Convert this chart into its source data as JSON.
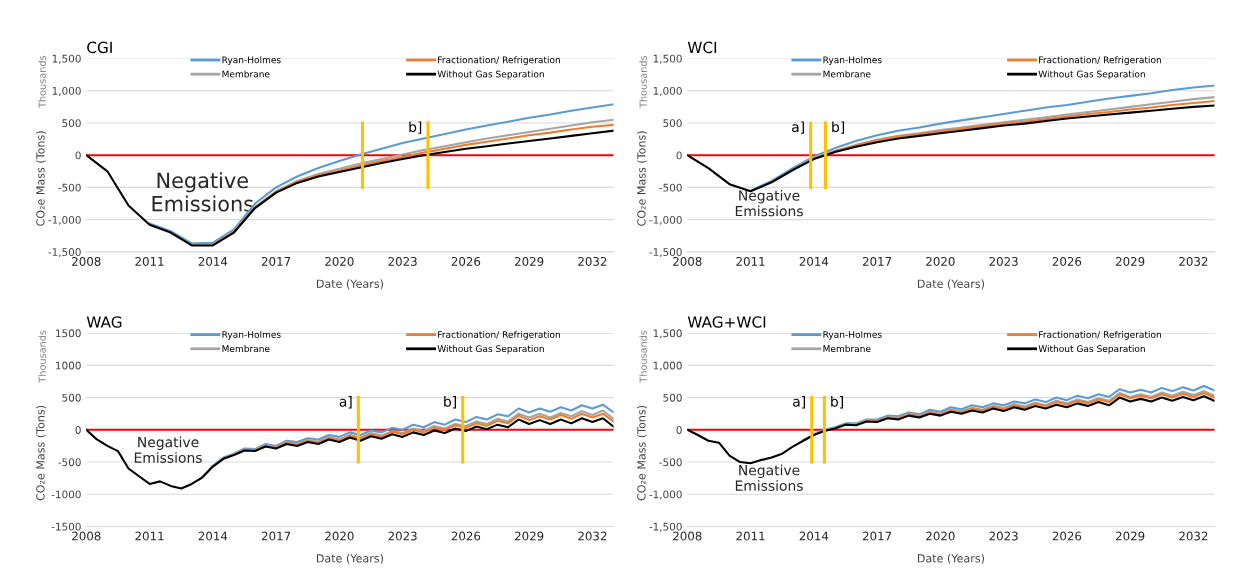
{
  "chart_data": [
    {
      "type": "line",
      "title": "CGI",
      "xlabel": "Date (Years)",
      "ylabel": "CO₂e Mass (Tons)",
      "annotations": [
        "Thousands",
        "Negative\nEmissions"
      ],
      "grid": "y",
      "legend": "top",
      "xlim": [
        2008,
        2033
      ],
      "xticks": [
        2008,
        2011,
        2014,
        2017,
        2020,
        2023,
        2026,
        2029,
        2032
      ],
      "ylim": [
        -1500,
        1500
      ],
      "yticks": [
        {
          "value": -1500,
          "label": "-1,500"
        },
        {
          "value": -1000,
          "label": "-1,000"
        },
        -500,
        0,
        500,
        {
          "value": 1000,
          "label": "1,000"
        },
        {
          "value": 1500,
          "label": "1,500"
        }
      ],
      "ref_lines": [
        {
          "axis": "y",
          "value": 0,
          "label": null,
          "color": "#ff0000"
        },
        {
          "axis": "x",
          "value": 2021.1,
          "label": null,
          "color": "#ffc000"
        },
        {
          "axis": "x",
          "value": 2024.2,
          "label": "b]",
          "color": "#ffc000"
        }
      ],
      "x": [
        2008,
        2009,
        2010,
        2011,
        2012,
        2013,
        2014,
        2015,
        2016,
        2017,
        2018,
        2019,
        2020,
        2021,
        2022,
        2023,
        2024,
        2025,
        2026,
        2027,
        2028,
        2029,
        2030,
        2031,
        2032,
        2033
      ],
      "series": [
        {
          "name": "Ryan-Holmes",
          "color": "#5b9bd5",
          "values": [
            null,
            null,
            null,
            -1060,
            -1180,
            -1370,
            -1360,
            -1150,
            -750,
            -500,
            -330,
            -200,
            -90,
            10,
            100,
            190,
            260,
            330,
            400,
            460,
            520,
            580,
            630,
            690,
            740,
            790
          ]
        },
        {
          "name": "Membrane",
          "color": "#a5a5a5",
          "values": [
            null,
            null,
            null,
            null,
            null,
            -1390,
            -1390,
            -1180,
            -800,
            -560,
            -400,
            -290,
            -210,
            -130,
            -60,
            10,
            80,
            140,
            200,
            260,
            310,
            360,
            410,
            460,
            510,
            550
          ]
        },
        {
          "name": "Fractionation/ Refrigeration",
          "color": "#ed7d31",
          "values": [
            null,
            null,
            null,
            null,
            null,
            null,
            -1390,
            -1190,
            -810,
            -570,
            -410,
            -310,
            -240,
            -160,
            -90,
            -30,
            40,
            100,
            160,
            210,
            260,
            310,
            350,
            400,
            440,
            470
          ]
        },
        {
          "name": "Without Gas Separation",
          "color": "#000000",
          "values": [
            0,
            -250,
            -780,
            -1080,
            -1200,
            -1400,
            -1400,
            -1200,
            -820,
            -580,
            -430,
            -330,
            -260,
            -190,
            -120,
            -60,
            0,
            50,
            100,
            140,
            180,
            220,
            260,
            300,
            340,
            380
          ]
        }
      ]
    },
    {
      "type": "line",
      "title": "WCI",
      "xlabel": "Date (Years)",
      "ylabel": "CO₂e Mass (Tons)",
      "annotations": [
        "Thousands",
        "Negative\nEmissions"
      ],
      "grid": "y",
      "legend": "top",
      "xlim": [
        2008,
        2033
      ],
      "xticks": [
        2008,
        2011,
        2014,
        2017,
        2020,
        2023,
        2026,
        2029,
        2032
      ],
      "ylim": [
        -1500,
        1500
      ],
      "yticks": [
        {
          "value": -1500,
          "label": "-1,500"
        },
        {
          "value": -1000,
          "label": "-1,000"
        },
        -500,
        0,
        500,
        {
          "value": 1000,
          "label": "1,000"
        },
        {
          "value": 1500,
          "label": "1,500"
        }
      ],
      "ref_lines": [
        {
          "axis": "y",
          "value": 0,
          "label": null,
          "color": "#ff0000"
        },
        {
          "axis": "x",
          "value": 2013.85,
          "label": "a]",
          "color": "#ffc000"
        },
        {
          "axis": "x",
          "value": 2014.55,
          "label": "b]",
          "color": "#ffc000"
        }
      ],
      "x": [
        2008,
        2009,
        2010,
        2011,
        2012,
        2013,
        2014,
        2015,
        2016,
        2017,
        2018,
        2019,
        2020,
        2021,
        2022,
        2023,
        2024,
        2025,
        2026,
        2027,
        2028,
        2029,
        2030,
        2031,
        2032,
        2033
      ],
      "series": [
        {
          "name": "Ryan-Holmes",
          "color": "#5b9bd5",
          "values": [
            null,
            null,
            null,
            -550,
            -400,
            -200,
            -20,
            110,
            220,
            310,
            380,
            430,
            490,
            540,
            590,
            640,
            690,
            740,
            780,
            830,
            880,
            920,
            960,
            1010,
            1050,
            1080
          ]
        },
        {
          "name": "Membrane",
          "color": "#a5a5a5",
          "values": [
            null,
            null,
            null,
            null,
            -410,
            -220,
            -40,
            70,
            160,
            240,
            300,
            340,
            390,
            430,
            470,
            510,
            550,
            590,
            630,
            670,
            710,
            750,
            790,
            830,
            870,
            900
          ]
        },
        {
          "name": "Fractionation/ Refrigeration",
          "color": "#ed7d31",
          "values": [
            null,
            null,
            null,
            null,
            null,
            null,
            null,
            60,
            150,
            230,
            290,
            330,
            370,
            410,
            450,
            490,
            520,
            560,
            600,
            640,
            670,
            710,
            740,
            780,
            810,
            840
          ]
        },
        {
          "name": "Without Gas Separation",
          "color": "#000000",
          "values": [
            0,
            -200,
            -450,
            -560,
            -420,
            -230,
            -60,
            50,
            130,
            200,
            260,
            300,
            340,
            380,
            420,
            460,
            490,
            530,
            570,
            600,
            630,
            660,
            690,
            720,
            750,
            770
          ]
        }
      ]
    },
    {
      "type": "line",
      "title": "WAG",
      "xlabel": "Date (Years)",
      "ylabel": "CO₂e Mass (Tons)",
      "annotations": [
        "Thousands",
        "Negative\nEmissions"
      ],
      "grid": "y",
      "legend": "top",
      "xlim": [
        2008,
        2033
      ],
      "xticks": [
        2008,
        2011,
        2014,
        2017,
        2020,
        2023,
        2026,
        2029,
        2032
      ],
      "ylim": [
        -1500,
        1500
      ],
      "yticks": [
        -1500,
        -1000,
        -500,
        0,
        500,
        1000,
        1500
      ],
      "ref_lines": [
        {
          "axis": "y",
          "value": 0,
          "label": null,
          "color": "#ff0000"
        },
        {
          "axis": "x",
          "value": 2020.9,
          "label": "a]",
          "color": "#ffc000"
        },
        {
          "axis": "x",
          "value": 2025.85,
          "label": "b]",
          "color": "#ffc000"
        }
      ],
      "x": [
        2008,
        2008.5,
        2009,
        2009.5,
        2010,
        2010.5,
        2011,
        2011.5,
        2012,
        2012.5,
        2013,
        2013.5,
        2014,
        2014.5,
        2015,
        2015.5,
        2016,
        2016.5,
        2017,
        2017.5,
        2018,
        2018.5,
        2019,
        2019.5,
        2020,
        2020.5,
        2021,
        2021.5,
        2022,
        2022.5,
        2023,
        2023.5,
        2024,
        2024.5,
        2025,
        2025.5,
        2026,
        2026.5,
        2027,
        2027.5,
        2028,
        2028.5,
        2029,
        2029.5,
        2030,
        2030.5,
        2031,
        2031.5,
        2032,
        2032.5,
        2033
      ],
      "series": [
        {
          "name": "Ryan-Holmes",
          "color": "#5b9bd5",
          "values": [
            null,
            null,
            null,
            null,
            null,
            null,
            null,
            null,
            null,
            null,
            null,
            -730,
            -560,
            -430,
            -370,
            -290,
            -300,
            -220,
            -250,
            -170,
            -190,
            -130,
            -150,
            -80,
            -110,
            -40,
            -80,
            -10,
            -40,
            30,
            0,
            80,
            40,
            120,
            80,
            160,
            120,
            200,
            160,
            240,
            210,
            330,
            270,
            330,
            280,
            350,
            300,
            380,
            330,
            390,
            270
          ]
        },
        {
          "name": "Membrane",
          "color": "#a5a5a5",
          "values": [
            null,
            null,
            null,
            null,
            null,
            null,
            null,
            null,
            null,
            null,
            null,
            null,
            -560,
            -440,
            -380,
            -310,
            -310,
            -240,
            -270,
            -190,
            -220,
            -160,
            -180,
            -110,
            -150,
            -80,
            -120,
            -50,
            -90,
            -20,
            -50,
            20,
            -20,
            60,
            20,
            90,
            60,
            130,
            90,
            170,
            130,
            250,
            190,
            250,
            190,
            260,
            210,
            290,
            230,
            300,
            170
          ]
        },
        {
          "name": "Fractionation/ Refrigeration",
          "color": "#ed7d31",
          "values": [
            null,
            null,
            null,
            null,
            null,
            null,
            null,
            null,
            null,
            null,
            null,
            null,
            null,
            null,
            null,
            -310,
            -320,
            -250,
            -280,
            -200,
            -230,
            -170,
            -200,
            -130,
            -160,
            -90,
            -140,
            -70,
            -110,
            -30,
            -70,
            0,
            -40,
            30,
            0,
            70,
            30,
            100,
            60,
            140,
            100,
            220,
            150,
            210,
            160,
            230,
            170,
            250,
            190,
            250,
            130
          ]
        },
        {
          "name": "Without Gas Separation",
          "color": "#000000",
          "values": [
            0,
            -150,
            -250,
            -330,
            -600,
            -720,
            -840,
            -800,
            -870,
            -910,
            -840,
            -740,
            -570,
            -450,
            -390,
            -320,
            -330,
            -260,
            -290,
            -220,
            -250,
            -190,
            -220,
            -150,
            -190,
            -120,
            -170,
            -100,
            -140,
            -70,
            -110,
            -40,
            -80,
            -10,
            -50,
            20,
            -20,
            50,
            10,
            80,
            40,
            160,
            90,
            150,
            90,
            160,
            100,
            180,
            120,
            180,
            50
          ]
        }
      ]
    },
    {
      "type": "line",
      "title": "WAG+WCI",
      "xlabel": "Date (Years)",
      "ylabel": "CO₂e Mass (Tons)",
      "annotations": [
        "Thousands",
        "Negative\nEmissions"
      ],
      "grid": "y",
      "legend": "top",
      "xlim": [
        2008,
        2033
      ],
      "xticks": [
        2008,
        2011,
        2014,
        2017,
        2020,
        2023,
        2026,
        2029,
        2032
      ],
      "ylim": [
        -1500,
        1500
      ],
      "yticks": [
        {
          "value": -1500,
          "label": "-1,500"
        },
        {
          "value": -1000,
          "label": "-1,000"
        },
        -500,
        0,
        500,
        {
          "value": 1000,
          "label": "1,000"
        },
        {
          "value": 1500,
          "label": "1,500"
        }
      ],
      "ref_lines": [
        {
          "axis": "y",
          "value": 0,
          "label": null,
          "color": "#ff0000"
        },
        {
          "axis": "x",
          "value": 2013.9,
          "label": "a]",
          "color": "#ffc000"
        },
        {
          "axis": "x",
          "value": 2014.5,
          "label": "b]",
          "color": "#ffc000"
        }
      ],
      "x": [
        2008,
        2008.5,
        2009,
        2009.5,
        2010,
        2010.5,
        2011,
        2011.5,
        2012,
        2012.5,
        2013,
        2013.5,
        2014,
        2014.5,
        2015,
        2015.5,
        2016,
        2016.5,
        2017,
        2017.5,
        2018,
        2018.5,
        2019,
        2019.5,
        2020,
        2020.5,
        2021,
        2021.5,
        2022,
        2022.5,
        2023,
        2023.5,
        2024,
        2024.5,
        2025,
        2025.5,
        2026,
        2026.5,
        2027,
        2027.5,
        2028,
        2028.5,
        2029,
        2029.5,
        2030,
        2030.5,
        2031,
        2031.5,
        2032,
        2032.5,
        2033
      ],
      "series": [
        {
          "name": "Ryan-Holmes",
          "color": "#5b9bd5",
          "values": [
            null,
            null,
            null,
            null,
            null,
            null,
            null,
            null,
            null,
            null,
            null,
            -160,
            -70,
            0,
            40,
            100,
            100,
            160,
            160,
            220,
            210,
            270,
            240,
            310,
            280,
            350,
            320,
            380,
            350,
            410,
            380,
            440,
            410,
            470,
            430,
            500,
            460,
            530,
            490,
            550,
            510,
            630,
            580,
            620,
            580,
            650,
            600,
            660,
            610,
            680,
            610
          ]
        },
        {
          "name": "Membrane",
          "color": "#a5a5a5",
          "values": [
            null,
            null,
            null,
            null,
            null,
            null,
            null,
            null,
            null,
            null,
            null,
            null,
            -70,
            -10,
            30,
            90,
            90,
            150,
            140,
            200,
            190,
            250,
            220,
            280,
            250,
            320,
            290,
            340,
            310,
            370,
            340,
            400,
            360,
            420,
            380,
            450,
            410,
            470,
            430,
            490,
            450,
            570,
            510,
            550,
            510,
            580,
            530,
            590,
            540,
            600,
            530
          ]
        },
        {
          "name": "Fractionation/ Refrigeration",
          "color": "#ed7d31",
          "values": [
            null,
            null,
            null,
            null,
            null,
            null,
            null,
            null,
            null,
            null,
            null,
            null,
            null,
            null,
            null,
            null,
            null,
            140,
            130,
            190,
            180,
            240,
            210,
            270,
            240,
            300,
            270,
            330,
            300,
            360,
            320,
            380,
            340,
            410,
            370,
            430,
            390,
            450,
            410,
            470,
            430,
            550,
            490,
            530,
            490,
            550,
            500,
            560,
            510,
            570,
            500
          ]
        },
        {
          "name": "Without Gas Separation",
          "color": "#000000",
          "values": [
            0,
            -80,
            -170,
            -200,
            -400,
            -500,
            -520,
            -470,
            -430,
            -370,
            -260,
            -170,
            -80,
            -20,
            20,
            80,
            70,
            130,
            120,
            180,
            160,
            220,
            190,
            250,
            220,
            280,
            250,
            300,
            270,
            330,
            290,
            350,
            310,
            370,
            330,
            390,
            350,
            410,
            370,
            430,
            380,
            500,
            440,
            480,
            440,
            500,
            450,
            510,
            460,
            520,
            450
          ]
        }
      ]
    }
  ]
}
